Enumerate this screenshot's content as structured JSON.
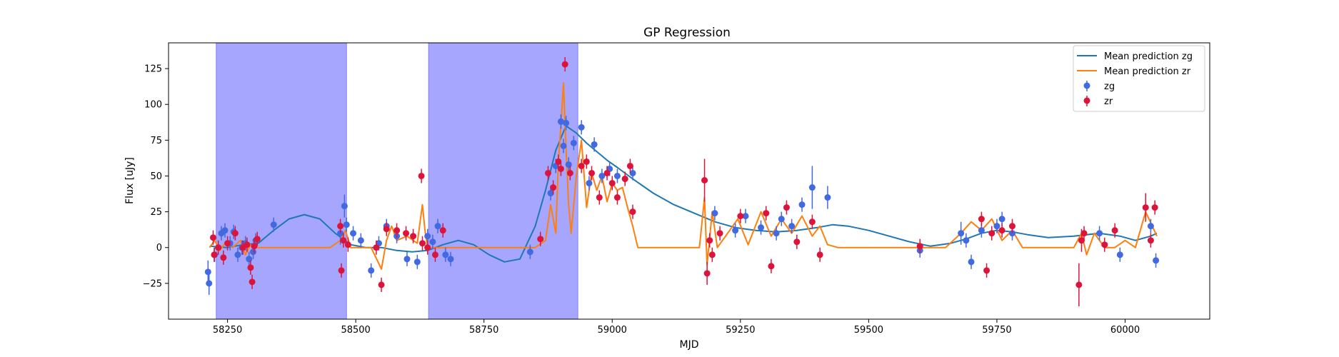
{
  "chart_data": {
    "type": "scatter",
    "title": "GP Regression",
    "xlabel": "MJD",
    "ylabel": "Flux [uJy]",
    "xlim": [
      58135,
      60165
    ],
    "ylim": [
      -50,
      143
    ],
    "xticks": [
      58250,
      58500,
      58750,
      59000,
      59250,
      59500,
      59750,
      60000
    ],
    "yticks": [
      -25,
      0,
      25,
      50,
      75,
      100,
      125
    ],
    "legend_position": "upper right",
    "grid": false,
    "shaded_regions": [
      {
        "x0": 58228,
        "x1": 58482,
        "color": "#a6a6ff"
      },
      {
        "x0": 58642,
        "x1": 58933,
        "color": "#a6a6ff"
      }
    ],
    "series": [
      {
        "name": "Mean prediction zg",
        "kind": "line",
        "color": "#1f77b4",
        "x": [
          58215,
          58250,
          58280,
          58310,
          58340,
          58370,
          58400,
          58430,
          58460,
          58490,
          58520,
          58550,
          58580,
          58610,
          58640,
          58670,
          58700,
          58730,
          58760,
          58790,
          58820,
          58850,
          58870,
          58890,
          58910,
          58930,
          58950,
          58970,
          58990,
          59010,
          59040,
          59080,
          59120,
          59160,
          59200,
          59240,
          59280,
          59320,
          59360,
          59400,
          59430,
          59460,
          59500,
          59540,
          59580,
          59620,
          59660,
          59690,
          59720,
          59750,
          59780,
          59810,
          59850,
          59900,
          59950,
          59990,
          60020,
          60050,
          60062
        ],
        "y": [
          1,
          0,
          2,
          3,
          12,
          20,
          23,
          20,
          10,
          2,
          0,
          0,
          -2,
          -3,
          -2,
          2,
          5,
          2,
          -5,
          -10,
          -8,
          15,
          40,
          68,
          85,
          80,
          73,
          67,
          61,
          56,
          48,
          38,
          30,
          24,
          18,
          14,
          12,
          11,
          12,
          14,
          16,
          15,
          12,
          8,
          4,
          1,
          3,
          6,
          10,
          12,
          11,
          9,
          7,
          8,
          10,
          8,
          5,
          8,
          10
        ]
      },
      {
        "name": "Mean prediction zr",
        "kind": "line",
        "color": "#ff7f0e",
        "x": [
          58215,
          58225,
          58235,
          58245,
          58260,
          58275,
          58285,
          58295,
          58305,
          58320,
          58360,
          58400,
          58450,
          58470,
          58480,
          58490,
          58500,
          58510,
          58530,
          58550,
          58560,
          58570,
          58580,
          58600,
          58620,
          58630,
          58635,
          58640,
          58650,
          58680,
          58700,
          58750,
          58800,
          58850,
          58870,
          58880,
          58890,
          58895,
          58900,
          58905,
          58910,
          58915,
          58920,
          58930,
          58940,
          58950,
          58960,
          58970,
          58980,
          58990,
          59000,
          59010,
          59020,
          59030,
          59040,
          59050,
          59070,
          59100,
          59150,
          59170,
          59180,
          59185,
          59195,
          59205,
          59225,
          59245,
          59265,
          59290,
          59310,
          59330,
          59350,
          59370,
          59390,
          59405,
          59420,
          59440,
          59500,
          59600,
          59650,
          59680,
          59700,
          59720,
          59740,
          59760,
          59780,
          59800,
          59850,
          59900,
          59915,
          59925,
          59940,
          59960,
          59980,
          60000,
          60020,
          60040,
          60062
        ],
        "y": [
          0,
          5,
          -2,
          3,
          0,
          5,
          -5,
          2,
          0,
          0,
          0,
          0,
          0,
          5,
          12,
          0,
          0,
          0,
          0,
          -15,
          5,
          15,
          5,
          8,
          3,
          30,
          12,
          0,
          0,
          0,
          0,
          0,
          0,
          0,
          5,
          30,
          10,
          60,
          85,
          115,
          70,
          30,
          10,
          50,
          75,
          28,
          52,
          40,
          50,
          32,
          45,
          40,
          42,
          28,
          15,
          0,
          0,
          0,
          0,
          0,
          35,
          -12,
          25,
          0,
          10,
          20,
          2,
          25,
          8,
          20,
          10,
          22,
          8,
          15,
          2,
          0,
          0,
          0,
          0,
          10,
          18,
          12,
          20,
          5,
          12,
          0,
          0,
          0,
          10,
          -5,
          10,
          0,
          0,
          5,
          0,
          25,
          8
        ]
      },
      {
        "name": "zg",
        "kind": "errorbar",
        "color": "#4169e1",
        "x": [
          58212,
          58214,
          58225,
          58238,
          58245,
          58255,
          58262,
          58270,
          58278,
          58285,
          58292,
          58300,
          58305,
          58340,
          58470,
          58478,
          58482,
          58495,
          58510,
          58530,
          58545,
          58560,
          58580,
          58600,
          58620,
          58640,
          58650,
          58660,
          58675,
          58685,
          58840,
          58880,
          58890,
          58900,
          58905,
          58910,
          58915,
          58925,
          58940,
          58955,
          58965,
          58980,
          58995,
          59010,
          59025,
          59040,
          59200,
          59240,
          59260,
          59290,
          59320,
          59330,
          59350,
          59370,
          59390,
          59420,
          59600,
          59680,
          59690,
          59700,
          59720,
          59750,
          59760,
          59780,
          59950,
          59990,
          60050,
          60060
        ],
        "y": [
          -17,
          -25,
          -5,
          10,
          12,
          3,
          11,
          -5,
          0,
          3,
          -8,
          -3,
          5,
          16,
          10,
          29,
          16,
          10,
          5,
          -16,
          3,
          15,
          8,
          -8,
          -10,
          8,
          4,
          15,
          -5,
          -8,
          -3,
          38,
          57,
          88,
          71,
          87,
          58,
          73,
          84,
          45,
          72,
          50,
          55,
          50,
          48,
          52,
          24,
          12,
          22,
          14,
          10,
          20,
          15,
          30,
          42,
          35,
          -2,
          10,
          5,
          -10,
          12,
          15,
          20,
          10,
          10,
          -5,
          15,
          -9
        ],
        "err": [
          8,
          8,
          5,
          5,
          5,
          5,
          5,
          5,
          5,
          5,
          5,
          5,
          5,
          5,
          8,
          8,
          5,
          5,
          5,
          5,
          5,
          5,
          5,
          5,
          5,
          5,
          5,
          5,
          5,
          5,
          5,
          5,
          5,
          5,
          5,
          5,
          5,
          5,
          5,
          5,
          5,
          5,
          5,
          5,
          5,
          5,
          5,
          5,
          5,
          5,
          5,
          5,
          5,
          5,
          15,
          8,
          5,
          8,
          5,
          5,
          5,
          5,
          5,
          5,
          5,
          5,
          5,
          5
        ]
      },
      {
        "name": "zr",
        "kind": "errorbar",
        "color": "#dc143c",
        "x": [
          58222,
          58224,
          58232,
          58242,
          58250,
          58265,
          58280,
          58288,
          58295,
          58298,
          58302,
          58308,
          58470,
          58472,
          58476,
          58485,
          58540,
          58550,
          58560,
          58580,
          58598,
          58612,
          58628,
          58630,
          58640,
          58655,
          58670,
          58860,
          58875,
          58885,
          58895,
          58900,
          58908,
          58918,
          58940,
          58950,
          58960,
          58975,
          58990,
          59000,
          59010,
          59025,
          59035,
          59040,
          59180,
          59185,
          59190,
          59195,
          59210,
          59250,
          59300,
          59310,
          59340,
          59360,
          59390,
          59405,
          59600,
          59720,
          59730,
          59740,
          59760,
          59780,
          59910,
          59915,
          59920,
          59960,
          59980,
          60040,
          60050,
          60058
        ],
        "y": [
          7,
          -5,
          0,
          -7,
          3,
          10,
          0,
          2,
          -14,
          -24,
          1,
          6,
          15,
          -16,
          5,
          2,
          0,
          -26,
          13,
          12,
          10,
          8,
          50,
          3,
          0,
          -5,
          12,
          6,
          52,
          42,
          60,
          55,
          128,
          52,
          57,
          60,
          52,
          35,
          52,
          45,
          35,
          48,
          57,
          25,
          47,
          -18,
          5,
          -5,
          10,
          22,
          24,
          -13,
          28,
          4,
          18,
          -5,
          1,
          20,
          -16,
          10,
          12,
          15,
          -26,
          5,
          10,
          2,
          12,
          28,
          5,
          28
        ],
        "err": [
          5,
          5,
          5,
          5,
          5,
          5,
          5,
          5,
          5,
          5,
          5,
          5,
          5,
          5,
          5,
          5,
          5,
          5,
          5,
          5,
          5,
          5,
          5,
          5,
          5,
          5,
          5,
          5,
          5,
          5,
          5,
          5,
          5,
          5,
          5,
          5,
          5,
          5,
          5,
          5,
          5,
          5,
          5,
          5,
          15,
          8,
          5,
          5,
          5,
          5,
          5,
          5,
          5,
          5,
          5,
          5,
          5,
          5,
          5,
          5,
          5,
          5,
          15,
          8,
          5,
          5,
          5,
          10,
          5,
          5
        ]
      }
    ]
  }
}
